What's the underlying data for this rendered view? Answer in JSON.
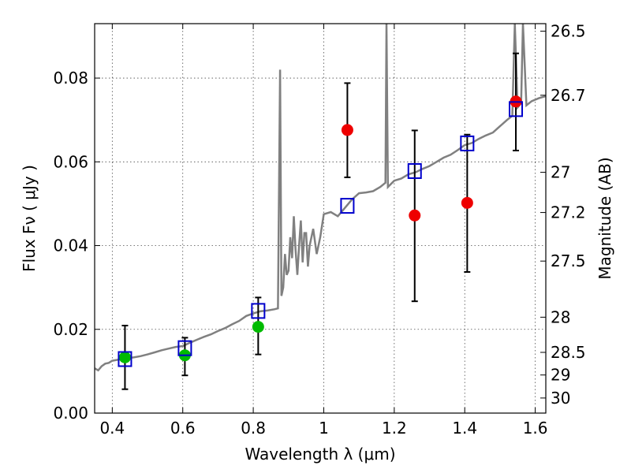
{
  "chart_data": {
    "type": "scatter",
    "xlabel": "Wavelength  λ (μm)",
    "ylabel": "Flux  Fν  ( μJy )",
    "y2label": "Magnitude (AB)",
    "xlim": [
      0.35,
      1.63
    ],
    "ylim": [
      0.0,
      0.093
    ],
    "xticks": [
      0.4,
      0.6,
      0.8,
      1.0,
      1.2,
      1.4,
      1.6
    ],
    "xtick_labels": [
      "0.4",
      "0.6",
      "0.8",
      "1",
      "1.2",
      "1.4",
      "1.6"
    ],
    "yticks": [
      0.0,
      0.02,
      0.04,
      0.06,
      0.08
    ],
    "ytick_labels": [
      "0.00",
      "0.02",
      "0.04",
      "0.06",
      "0.08"
    ],
    "y2ticks": [
      {
        "label": "26.5",
        "flux": 0.0912
      },
      {
        "label": "26.7",
        "flux": 0.0759
      },
      {
        "label": "27",
        "flux": 0.0575
      },
      {
        "label": "27.2",
        "flux": 0.0479
      },
      {
        "label": "27.5",
        "flux": 0.0363
      },
      {
        "label": "28",
        "flux": 0.0229
      },
      {
        "label": "28.5",
        "flux": 0.0145
      },
      {
        "label": "29",
        "flux": 0.0091
      },
      {
        "label": "30",
        "flux": 0.0036
      }
    ],
    "grid": true,
    "colors": {
      "spectrum": "#808080",
      "model": "#0000cc",
      "detected": "#00bb00",
      "observed": "#ee0000",
      "errorbar": "#000000"
    },
    "model_points": [
      {
        "x": 0.436,
        "y": 0.0129
      },
      {
        "x": 0.606,
        "y": 0.0155
      },
      {
        "x": 0.814,
        "y": 0.0244
      },
      {
        "x": 1.067,
        "y": 0.0495
      },
      {
        "x": 1.258,
        "y": 0.0578
      },
      {
        "x": 1.407,
        "y": 0.0644
      },
      {
        "x": 1.545,
        "y": 0.0726
      }
    ],
    "detected_points": [
      {
        "x": 0.436,
        "y": 0.0133,
        "err_low": 0.0057,
        "err_high": 0.0209
      },
      {
        "x": 0.606,
        "y": 0.0138,
        "err_low": 0.009,
        "err_high": 0.018
      },
      {
        "x": 0.814,
        "y": 0.0206,
        "err_low": 0.014,
        "err_high": 0.0276
      }
    ],
    "observed_points": [
      {
        "x": 1.067,
        "y": 0.0676,
        "err_low": 0.0563,
        "err_high": 0.0788
      },
      {
        "x": 1.258,
        "y": 0.0472,
        "err_low": 0.0267,
        "err_high": 0.0675
      },
      {
        "x": 1.407,
        "y": 0.0502,
        "err_low": 0.0337,
        "err_high": 0.0665
      },
      {
        "x": 1.545,
        "y": 0.0744,
        "err_low": 0.0627,
        "err_high": 0.0859
      }
    ],
    "spectrum": [
      [
        0.35,
        0.0107
      ],
      [
        0.36,
        0.0102
      ],
      [
        0.37,
        0.0112
      ],
      [
        0.38,
        0.0118
      ],
      [
        0.39,
        0.012
      ],
      [
        0.4,
        0.0125
      ],
      [
        0.42,
        0.0128
      ],
      [
        0.44,
        0.0131
      ],
      [
        0.46,
        0.0133
      ],
      [
        0.48,
        0.0136
      ],
      [
        0.5,
        0.014
      ],
      [
        0.52,
        0.0145
      ],
      [
        0.54,
        0.015
      ],
      [
        0.56,
        0.0154
      ],
      [
        0.58,
        0.0158
      ],
      [
        0.6,
        0.016
      ],
      [
        0.62,
        0.0168
      ],
      [
        0.64,
        0.0175
      ],
      [
        0.66,
        0.0182
      ],
      [
        0.68,
        0.0188
      ],
      [
        0.7,
        0.0196
      ],
      [
        0.72,
        0.0203
      ],
      [
        0.74,
        0.0212
      ],
      [
        0.76,
        0.022
      ],
      [
        0.78,
        0.0232
      ],
      [
        0.8,
        0.0238
      ],
      [
        0.82,
        0.0243
      ],
      [
        0.84,
        0.0245
      ],
      [
        0.86,
        0.0248
      ],
      [
        0.87,
        0.025
      ],
      [
        0.876,
        0.082
      ],
      [
        0.88,
        0.028
      ],
      [
        0.885,
        0.03
      ],
      [
        0.89,
        0.038
      ],
      [
        0.895,
        0.033
      ],
      [
        0.9,
        0.034
      ],
      [
        0.905,
        0.042
      ],
      [
        0.91,
        0.037
      ],
      [
        0.915,
        0.047
      ],
      [
        0.92,
        0.039
      ],
      [
        0.925,
        0.033
      ],
      [
        0.93,
        0.04
      ],
      [
        0.935,
        0.046
      ],
      [
        0.94,
        0.036
      ],
      [
        0.945,
        0.043
      ],
      [
        0.95,
        0.043
      ],
      [
        0.955,
        0.035
      ],
      [
        0.96,
        0.04
      ],
      [
        0.97,
        0.044
      ],
      [
        0.98,
        0.038
      ],
      [
        0.99,
        0.042
      ],
      [
        1.0,
        0.0475
      ],
      [
        1.02,
        0.048
      ],
      [
        1.04,
        0.047
      ],
      [
        1.06,
        0.049
      ],
      [
        1.08,
        0.051
      ],
      [
        1.1,
        0.0525
      ],
      [
        1.12,
        0.0527
      ],
      [
        1.14,
        0.053
      ],
      [
        1.16,
        0.054
      ],
      [
        1.175,
        0.055
      ],
      [
        1.178,
        0.093
      ],
      [
        1.182,
        0.054
      ],
      [
        1.2,
        0.0555
      ],
      [
        1.22,
        0.056
      ],
      [
        1.24,
        0.057
      ],
      [
        1.26,
        0.0575
      ],
      [
        1.28,
        0.0583
      ],
      [
        1.3,
        0.059
      ],
      [
        1.32,
        0.06
      ],
      [
        1.34,
        0.061
      ],
      [
        1.36,
        0.0617
      ],
      [
        1.38,
        0.0628
      ],
      [
        1.4,
        0.064
      ],
      [
        1.42,
        0.0645
      ],
      [
        1.44,
        0.0655
      ],
      [
        1.46,
        0.0663
      ],
      [
        1.48,
        0.067
      ],
      [
        1.5,
        0.0685
      ],
      [
        1.52,
        0.07
      ],
      [
        1.535,
        0.071
      ],
      [
        1.542,
        0.093
      ],
      [
        1.55,
        0.073
      ],
      [
        1.56,
        0.074
      ],
      [
        1.565,
        0.093
      ],
      [
        1.575,
        0.0735
      ],
      [
        1.59,
        0.0745
      ],
      [
        1.61,
        0.0752
      ],
      [
        1.63,
        0.0757
      ]
    ]
  }
}
